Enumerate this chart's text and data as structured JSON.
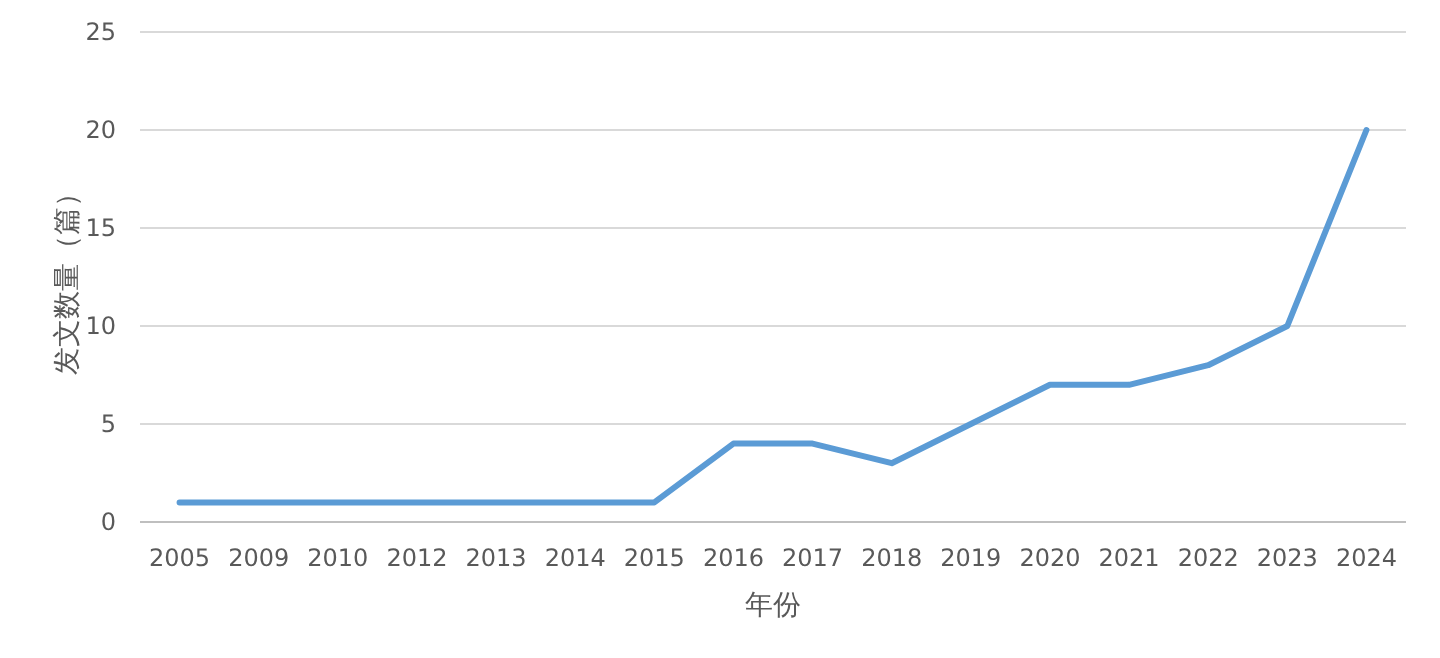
{
  "chart_data": {
    "type": "line",
    "xlabel": "年份",
    "ylabel": "发文数量（篇）",
    "categories": [
      "2005",
      "2009",
      "2010",
      "2012",
      "2013",
      "2014",
      "2015",
      "2016",
      "2017",
      "2018",
      "2019",
      "2020",
      "2021",
      "2022",
      "2023",
      "2024"
    ],
    "series": [
      {
        "color": "#5b9bd5",
        "values": [
          1,
          1,
          1,
          1,
          1,
          1,
          1,
          4,
          4,
          3,
          5,
          7,
          7,
          8,
          10,
          20
        ]
      }
    ],
    "ylim": [
      0,
      25
    ],
    "yticks": [
      0,
      5,
      10,
      15,
      20,
      25
    ],
    "grid": "y",
    "marker": "none",
    "line_style": "solid"
  }
}
